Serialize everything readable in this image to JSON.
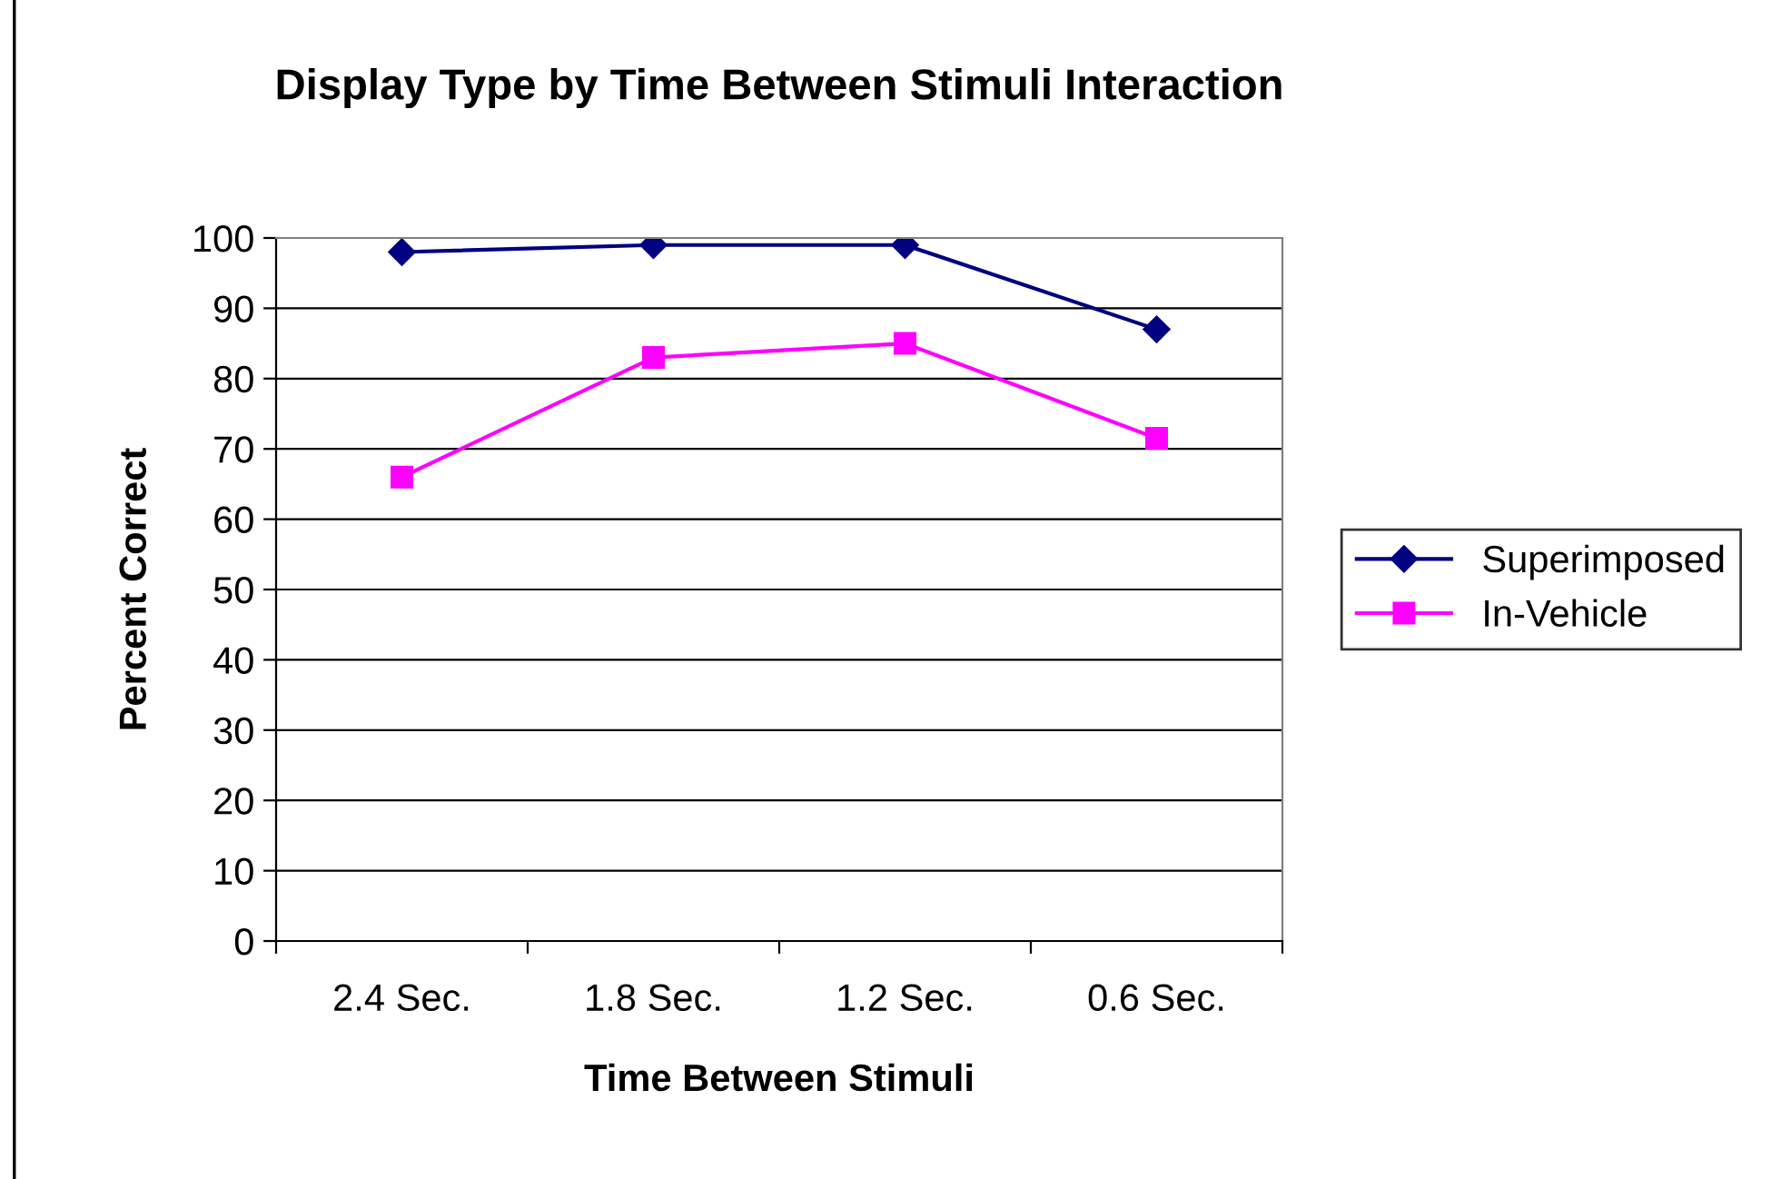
{
  "chart_data": {
    "type": "line",
    "title": "Display Type by Time Between Stimuli Interaction",
    "xlabel": "Time Between Stimuli",
    "ylabel": "Percent Correct",
    "categories": [
      "2.4 Sec.",
      "1.8 Sec.",
      "1.2 Sec.",
      "0.6 Sec."
    ],
    "series": [
      {
        "name": "Superimposed",
        "color": "#000080",
        "marker": "diamond",
        "values": [
          98,
          99,
          99,
          87
        ]
      },
      {
        "name": "In-Vehicle",
        "color": "#ff00ff",
        "marker": "square",
        "values": [
          66,
          83,
          85,
          71.5
        ]
      }
    ],
    "ylim": [
      0,
      100
    ],
    "yticks": [
      0,
      10,
      20,
      30,
      40,
      50,
      60,
      70,
      80,
      90,
      100
    ],
    "grid": "y",
    "legend": "right",
    "line_style": "solid"
  }
}
